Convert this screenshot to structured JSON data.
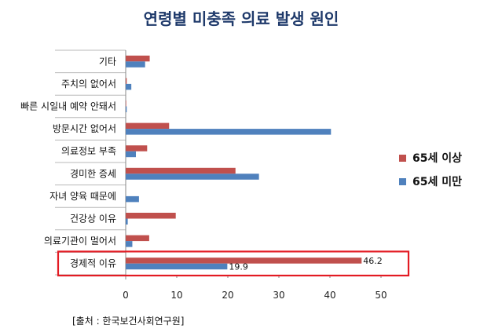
{
  "chart_data": {
    "type": "bar",
    "orientation": "horizontal",
    "title": "연령별 미충족 의료 발생 원인",
    "categories": [
      "기타",
      "주치의 없어서",
      "빠른 시일내 예약 안돼서",
      "방문시간 없어서",
      "의료정보 부족",
      "경미한 증세",
      "자녀 양육 때문에",
      "건강상 이유",
      "의료기관이 멀어서",
      "경제적 이유"
    ],
    "series": [
      {
        "name": "65세 이상",
        "color": "#c0504d",
        "values": [
          4.7,
          0.2,
          0.1,
          8.5,
          4.2,
          21.5,
          0.0,
          9.8,
          4.6,
          46.2
        ]
      },
      {
        "name": "65세 미만",
        "color": "#4f81bd",
        "values": [
          3.8,
          1.1,
          0.2,
          40.2,
          2.0,
          26.1,
          2.6,
          0.4,
          1.3,
          19.9
        ]
      }
    ],
    "xlim": [
      0,
      50
    ],
    "xticks": [
      0,
      10,
      20,
      30,
      40,
      50
    ],
    "grid": false,
    "legend_position": "right",
    "highlight": {
      "category": "경제적 이유",
      "color": "#e31b23"
    },
    "data_labels": [
      {
        "series": "65세 이상",
        "category": "경제적 이유",
        "text": "46.2"
      },
      {
        "series": "65세 미만",
        "category": "경제적 이유",
        "text": "19.9"
      }
    ]
  },
  "source": "[출처 : 한국보건사회연구원]"
}
